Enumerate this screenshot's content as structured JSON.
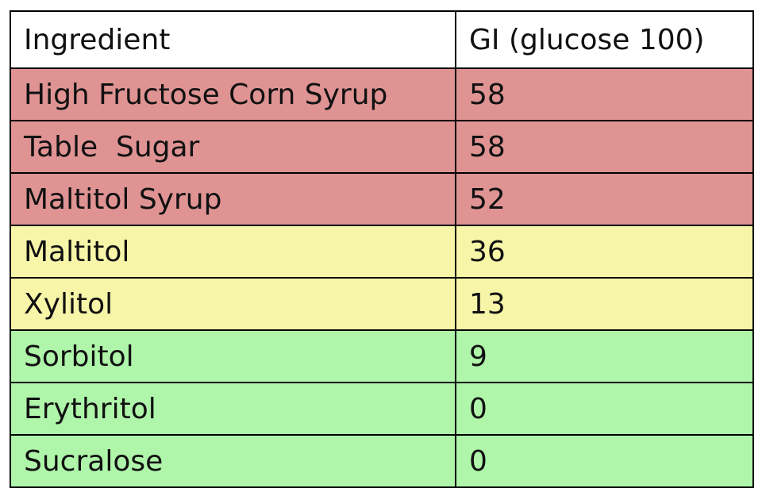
{
  "table": {
    "header": [
      "Ingredient",
      "GI (glucose 100)"
    ],
    "rows": [
      [
        "High Fructose Corn Syrup",
        58
      ],
      [
        "Table  Sugar",
        58
      ],
      [
        "Maltitol Syrup",
        52
      ],
      [
        "Maltitol",
        36
      ],
      [
        "Xylitol",
        13
      ],
      [
        "Sorbitol",
        9
      ],
      [
        "Erythritol",
        0
      ],
      [
        "Sucralose",
        0
      ]
    ]
  }
}
